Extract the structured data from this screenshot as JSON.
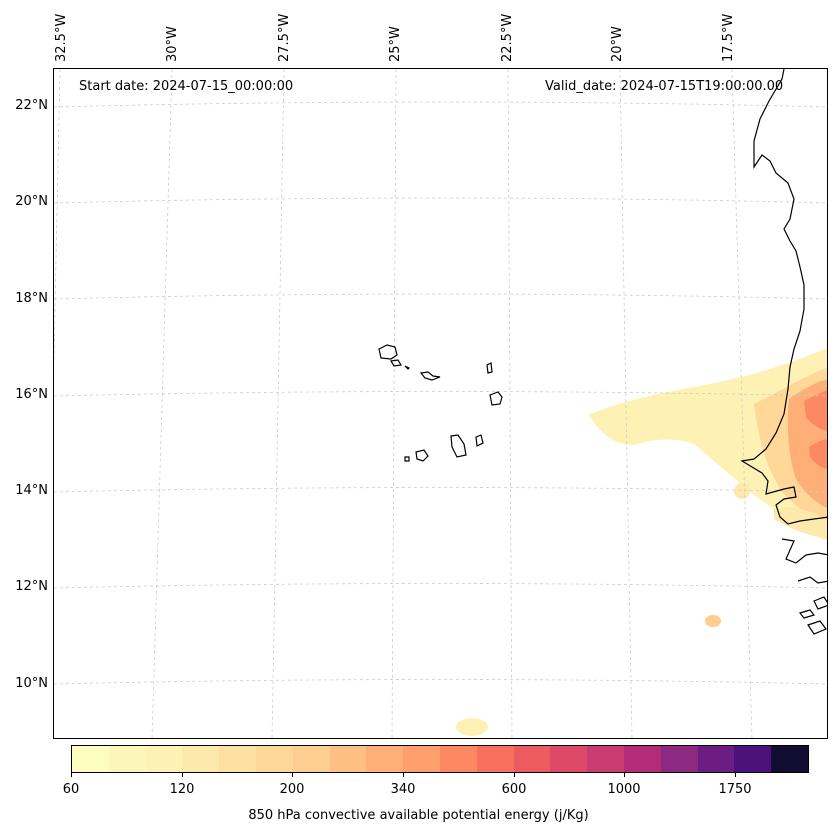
{
  "map": {
    "start_date": "Start date: 2024-07-15_00:00:00",
    "valid_date": "Valid_date: 2024-07-15T19:00:00.00",
    "lat_labels": [
      "22°N",
      "20°N",
      "18°N",
      "16°N",
      "14°N",
      "12°N",
      "10°N"
    ],
    "lon_labels": [
      "32.5°W",
      "30°W",
      "27.5°W",
      "25°W",
      "22.5°W",
      "20°W",
      "17.5°W"
    ],
    "field": "850 hPa convective available potential energy",
    "coastline_color": "#000000",
    "gridline_color": "#cccccc"
  },
  "colorbar": {
    "label": "850 hPa convective available potential energy (j/Kg)",
    "tick_labels": [
      "60",
      "120",
      "200",
      "340",
      "600",
      "1000",
      "1750"
    ],
    "colors": [
      "#fcfdbf",
      "#fcf7b9",
      "#fdf1b4",
      "#fde9ac",
      "#fee0a3",
      "#fed799",
      "#fecd90",
      "#febf84",
      "#feaf78",
      "#fe9f6d",
      "#fc8961",
      "#f7705c",
      "#ed5a5f",
      "#de4968",
      "#c93c72",
      "#b32c7a",
      "#8c2981",
      "#6b1d81",
      "#4c117a",
      "#120d32"
    ]
  }
}
